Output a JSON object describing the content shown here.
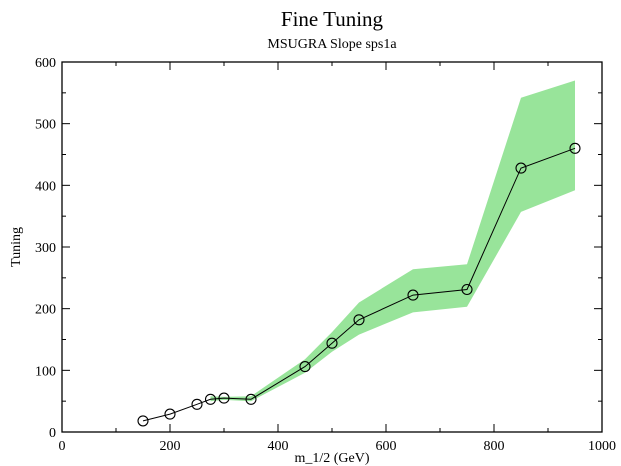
{
  "chart_data": {
    "type": "line",
    "title": "Fine Tuning",
    "subtitle": "MSUGRA Slope sps1a",
    "xlabel": "m_1/2 (GeV)",
    "ylabel": "Tuning",
    "xlim": [
      0,
      1000
    ],
    "ylim": [
      0,
      600
    ],
    "x_ticks": [
      "0",
      "200",
      "400",
      "600",
      "800",
      "1000"
    ],
    "y_ticks": [
      "0",
      "100",
      "200",
      "300",
      "400",
      "500",
      "600"
    ],
    "x_tick_values": [
      0,
      200,
      400,
      600,
      800,
      1000
    ],
    "y_tick_values": [
      0,
      100,
      200,
      300,
      400,
      500,
      600
    ],
    "grid": false,
    "legend": "none",
    "series": [
      {
        "x": [
          150,
          200,
          250,
          275,
          300,
          350,
          450,
          500,
          550,
          650,
          750,
          850,
          950
        ],
        "y": [
          18,
          29,
          45,
          53,
          55,
          53,
          106,
          144,
          182,
          222,
          231,
          428,
          460
        ]
      }
    ],
    "band": {
      "x": [
        275,
        300,
        350,
        450,
        500,
        550,
        650,
        750,
        850,
        950
      ],
      "upper": [
        58,
        57,
        58,
        118,
        162,
        210,
        264,
        272,
        542,
        570
      ],
      "lower": [
        50,
        52,
        50,
        96,
        130,
        158,
        194,
        203,
        357,
        392
      ],
      "color": "#98e49a"
    },
    "line_color": "#000000"
  }
}
